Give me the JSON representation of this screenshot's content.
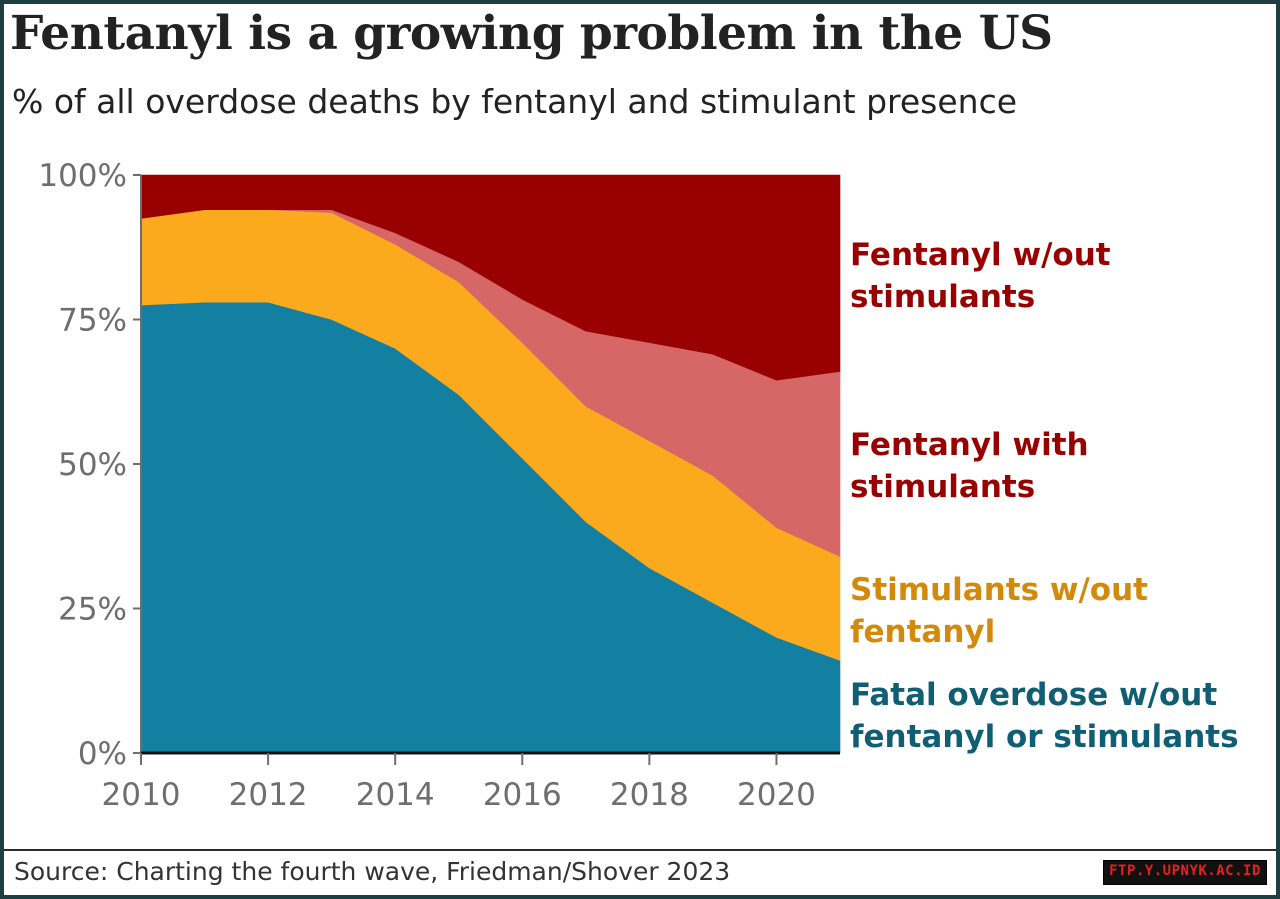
{
  "title": "Fentanyl is a growing problem in the US",
  "subtitle": "% of all overdose deaths by fentanyl and stimulant presence",
  "source": "Source: Charting the fourth wave, Friedman/Shover 2023",
  "watermark": "FTP.Y.UPNYK.AC.ID",
  "chart_data": {
    "type": "area",
    "stacked": true,
    "x": [
      2010,
      2011,
      2012,
      2013,
      2014,
      2015,
      2016,
      2017,
      2018,
      2019,
      2020,
      2021
    ],
    "xticks": [
      "2010",
      "2012",
      "2014",
      "2016",
      "2018",
      "2020"
    ],
    "yticks": [
      "0%",
      "25%",
      "50%",
      "75%",
      "100%"
    ],
    "ylim": [
      0,
      100
    ],
    "grid": false,
    "legend": "direct labels, right of plot",
    "series": [
      {
        "name": "Fatal overdose w/out fentanyl or stimulants",
        "label_lines": [
          "Fatal overdose w/out",
          "fentanyl or stimulants"
        ],
        "color": "#1380a1",
        "label_color": "#0f5e74",
        "values": [
          77.5,
          78,
          78,
          75,
          70,
          62,
          51,
          40,
          32,
          26,
          20,
          16
        ]
      },
      {
        "name": "Stimulants w/out fentanyl",
        "label_lines": [
          "Stimulants w/out",
          "fentanyl"
        ],
        "color": "#fcaa1d",
        "label_color": "#d38a0c",
        "values": [
          15,
          16,
          16,
          18.5,
          18,
          19.5,
          20,
          20,
          22,
          22,
          19,
          18
        ]
      },
      {
        "name": "Fentanyl with stimulants",
        "label_lines": [
          "Fentanyl with",
          "stimulants"
        ],
        "color": "#d76767",
        "label_color": "#990000",
        "values": [
          0,
          0,
          0,
          0.5,
          2,
          3.5,
          7.5,
          13,
          17,
          21,
          25.5,
          32
        ]
      },
      {
        "name": "Fentanyl w/out stimulants",
        "label_lines": [
          "Fentanyl w/out",
          "stimulants"
        ],
        "color": "#990000",
        "label_color": "#990000",
        "values": [
          7.5,
          6,
          6,
          6,
          10,
          15,
          21.5,
          27,
          29,
          31,
          35.5,
          34
        ]
      }
    ]
  }
}
